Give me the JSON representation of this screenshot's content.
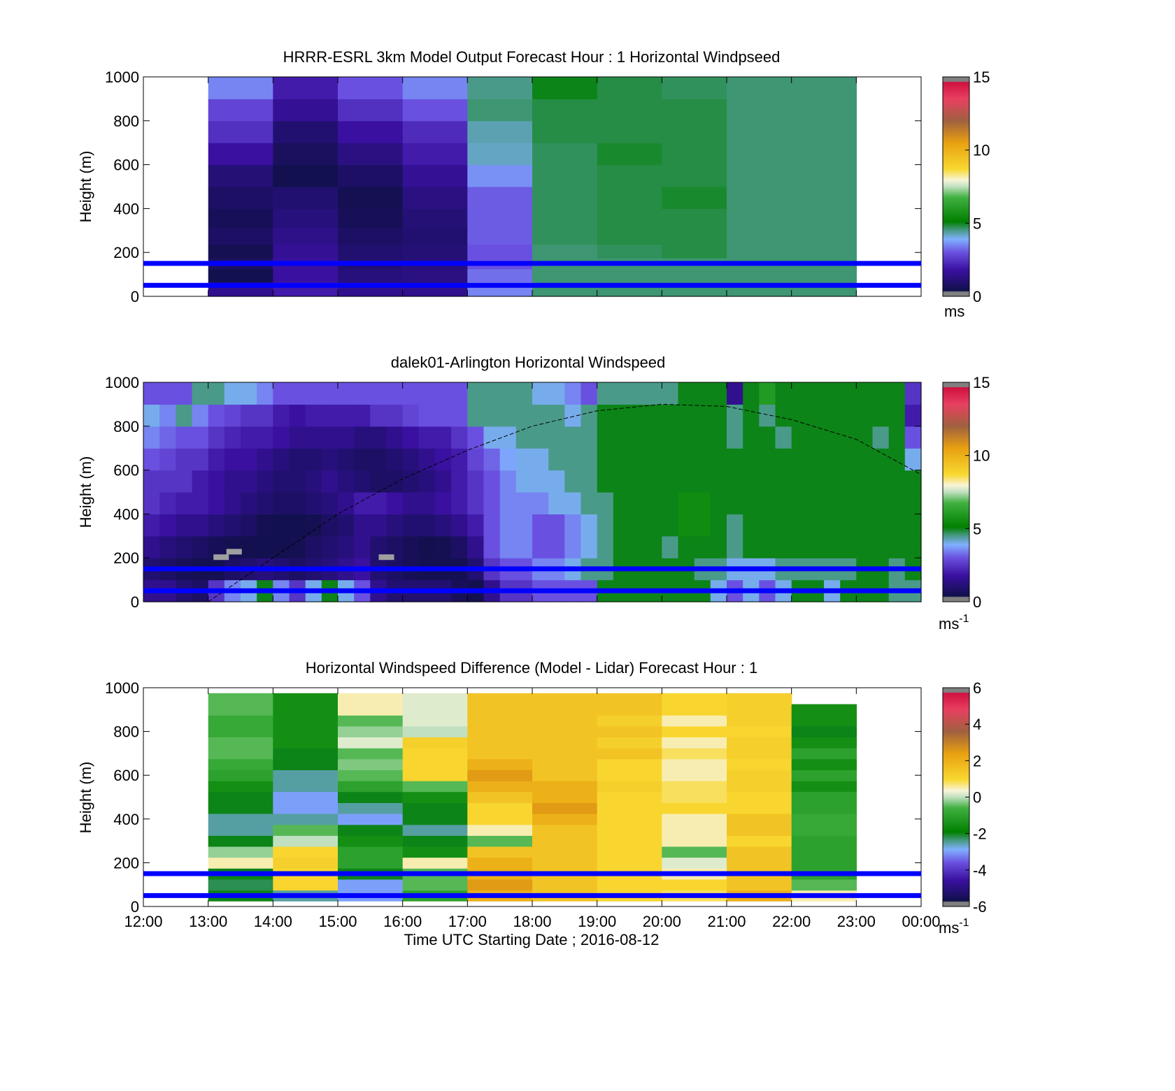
{
  "figure": {
    "xlabel": "Time UTC  Starting Date ; 2016-08-12",
    "xticks": [
      "12:00",
      "13:00",
      "14:00",
      "15:00",
      "16:00",
      "17:00",
      "18:00",
      "19:00",
      "20:00",
      "21:00",
      "22:00",
      "23:00",
      "00:00"
    ],
    "reference_lines_m": [
      50,
      150
    ],
    "reference_line_color": "#0000ff"
  },
  "chart_data": [
    {
      "type": "heatmap",
      "title": "HRRR-ESRL 3km Model Output   Forecast Hour : 1 Horizontal Windpseed",
      "ylabel": "Height (m)",
      "ylim": [
        0,
        1000
      ],
      "yticks": [
        "0",
        "200",
        "400",
        "600",
        "800",
        "1000"
      ],
      "x_hours": [
        13,
        14,
        15,
        16,
        17,
        18,
        19,
        20,
        21,
        22
      ],
      "y_levels_m": [
        30,
        100,
        150,
        200,
        275,
        350,
        450,
        550,
        650,
        750,
        850,
        950
      ],
      "speed_ms": [
        [
          1.5,
          2.0,
          1.5,
          1.5,
          3.5,
          4.6,
          4.6,
          4.6,
          4.6,
          4.6
        ],
        [
          0.0,
          1.8,
          1.2,
          1.3,
          3.3,
          4.6,
          4.6,
          4.6,
          4.6,
          4.6
        ],
        [
          0.8,
          1.8,
          1.0,
          1.2,
          3.0,
          4.6,
          4.6,
          4.6,
          4.6,
          4.6
        ],
        [
          0.5,
          1.6,
          1.0,
          1.1,
          3.0,
          4.6,
          4.7,
          4.8,
          4.6,
          4.6
        ],
        [
          0.8,
          1.4,
          0.8,
          1.0,
          3.1,
          4.7,
          4.8,
          4.8,
          4.6,
          4.6
        ],
        [
          0.6,
          1.2,
          0.6,
          1.1,
          3.1,
          4.7,
          4.8,
          4.8,
          4.6,
          4.6
        ],
        [
          0.8,
          1.0,
          0.5,
          1.3,
          3.1,
          4.7,
          4.8,
          4.9,
          4.6,
          4.6
        ],
        [
          1.1,
          0.0,
          0.8,
          1.6,
          3.6,
          4.7,
          4.8,
          4.8,
          4.6,
          4.6
        ],
        [
          1.8,
          0.7,
          1.3,
          2.0,
          4.2,
          4.7,
          4.9,
          4.8,
          4.6,
          4.6
        ],
        [
          2.4,
          1.0,
          1.8,
          2.3,
          4.3,
          4.8,
          4.8,
          4.8,
          4.6,
          4.6
        ],
        [
          2.8,
          1.6,
          2.4,
          3.0,
          4.6,
          4.8,
          4.8,
          4.8,
          4.6,
          4.6
        ],
        [
          3.5,
          2.0,
          3.0,
          3.5,
          4.5,
          5.0,
          4.8,
          4.7,
          4.6,
          4.6
        ]
      ],
      "colorbar": {
        "min": 0,
        "max": 15,
        "ticks": [
          "0",
          "5",
          "10",
          "15"
        ],
        "unit": "ms"
      }
    },
    {
      "type": "heatmap",
      "title": "dalek01-Arlington  Horizontal Windspeed",
      "ylabel": "Height (m)",
      "ylim": [
        0,
        1000
      ],
      "yticks": [
        "0",
        "200",
        "400",
        "600",
        "800",
        "1000"
      ],
      "x_hours": [
        12.125,
        12.375,
        12.625,
        12.875,
        13.125,
        13.375,
        13.625,
        13.875,
        14.125,
        14.375,
        14.625,
        14.875,
        15.125,
        15.375,
        15.625,
        15.875,
        16.125,
        16.375,
        16.625,
        16.875,
        17.125,
        17.375,
        17.625,
        17.875,
        18.125,
        18.375,
        18.625,
        18.875,
        19.125,
        19.375,
        19.625,
        19.875,
        20.125,
        20.375,
        20.625,
        20.875,
        21.125,
        21.375,
        21.625,
        21.875,
        22.125,
        22.375,
        22.625,
        22.875,
        23.125,
        23.375,
        23.625,
        23.875
      ],
      "y_levels_m": [
        50,
        150,
        250,
        350,
        450,
        550,
        650,
        750,
        850,
        950
      ],
      "speed_ms": [
        [
          1.5,
          1.5,
          1.0,
          0.8,
          2.5,
          3.5,
          4.0,
          5.0,
          3.5,
          2.5,
          4.0,
          5.0,
          4.0,
          3.0,
          1.5,
          1.0,
          1.0,
          1.0,
          1.0,
          0.6,
          0.2,
          1.5,
          2.5,
          2.5,
          3.0,
          3.0,
          3.0,
          3.0,
          5.0,
          5.0,
          5.0,
          5.0,
          5.0,
          5.0,
          5.0,
          4.0,
          3.0,
          4.0,
          3.0,
          4.0,
          5.0,
          5.0,
          4.0,
          5.0,
          5.0,
          5.0,
          4.5,
          4.5
        ],
        [
          1.0,
          0.8,
          0.6,
          0.5,
          0.5,
          0.8,
          1.0,
          1.2,
          1.0,
          0.8,
          1.0,
          1.2,
          1.5,
          1.8,
          1.0,
          0.8,
          0.6,
          0.5,
          0.5,
          0.5,
          1.0,
          2.5,
          3.0,
          3.0,
          3.5,
          3.5,
          4.0,
          4.5,
          4.5,
          5.0,
          5.0,
          5.0,
          5.0,
          5.0,
          4.5,
          4.5,
          4.0,
          4.0,
          4.0,
          4.5,
          4.5,
          4.5,
          4.5,
          4.5,
          5.0,
          5.0,
          4.5,
          5.0
        ],
        [
          1.5,
          1.2,
          1.0,
          0.8,
          0.6,
          0.5,
          0.3,
          0.2,
          0.3,
          0.5,
          0.8,
          1.0,
          1.2,
          1.5,
          1.0,
          0.8,
          0.6,
          0.4,
          0.5,
          0.8,
          1.5,
          3.0,
          3.5,
          3.5,
          3.0,
          3.0,
          3.5,
          4.0,
          4.5,
          5.0,
          5.0,
          5.0,
          4.5,
          5.0,
          5.0,
          5.0,
          4.5,
          5.0,
          5.0,
          5.0,
          5.0,
          5.0,
          5.0,
          5.0,
          5.0,
          5.0,
          5.0,
          5.0
        ],
        [
          2.0,
          1.8,
          1.5,
          1.5,
          1.2,
          1.0,
          0.8,
          0.5,
          0.3,
          0.3,
          0.5,
          0.8,
          1.0,
          1.5,
          1.5,
          1.2,
          1.0,
          1.0,
          1.2,
          1.5,
          2.0,
          3.0,
          3.5,
          3.5,
          3.0,
          3.0,
          3.5,
          4.0,
          4.5,
          5.0,
          5.0,
          5.0,
          5.0,
          5.5,
          5.5,
          5.0,
          4.5,
          5.0,
          5.0,
          5.0,
          5.0,
          5.0,
          5.0,
          5.0,
          5.0,
          5.0,
          5.0,
          5.0
        ],
        [
          2.5,
          2.2,
          2.0,
          2.0,
          1.8,
          1.5,
          1.2,
          1.0,
          0.8,
          0.8,
          1.0,
          1.2,
          1.5,
          2.0,
          2.0,
          1.8,
          1.5,
          1.5,
          1.8,
          2.0,
          2.5,
          3.0,
          3.5,
          3.5,
          3.5,
          4.0,
          4.0,
          4.5,
          4.5,
          5.0,
          5.0,
          5.0,
          5.0,
          5.5,
          5.5,
          5.0,
          5.0,
          5.0,
          5.0,
          5.0,
          5.0,
          5.0,
          5.0,
          5.0,
          5.0,
          5.0,
          5.0,
          5.0
        ],
        [
          2.5,
          2.5,
          2.5,
          2.0,
          1.8,
          1.5,
          1.5,
          1.2,
          1.0,
          1.0,
          1.2,
          1.5,
          1.2,
          1.0,
          0.8,
          0.8,
          1.0,
          1.2,
          1.5,
          2.0,
          2.5,
          3.0,
          3.5,
          4.0,
          4.0,
          4.0,
          4.5,
          4.5,
          5.0,
          5.0,
          5.0,
          5.0,
          5.0,
          5.0,
          5.0,
          5.0,
          5.0,
          5.0,
          5.0,
          5.0,
          5.0,
          5.0,
          5.0,
          5.0,
          5.0,
          5.0,
          5.0,
          5.0
        ],
        [
          3.0,
          2.8,
          2.5,
          2.5,
          2.0,
          1.8,
          1.8,
          1.5,
          1.2,
          1.0,
          1.0,
          1.2,
          1.0,
          0.8,
          0.8,
          1.0,
          1.2,
          1.5,
          1.8,
          2.0,
          2.8,
          3.2,
          3.8,
          4.0,
          4.0,
          4.5,
          4.5,
          4.5,
          5.0,
          5.0,
          5.0,
          5.0,
          5.0,
          5.0,
          5.0,
          5.0,
          5.0,
          5.0,
          5.0,
          5.0,
          5.0,
          5.0,
          5.0,
          5.0,
          5.0,
          5.0,
          5.0,
          4.0
        ],
        [
          3.5,
          3.2,
          3.0,
          3.0,
          2.5,
          2.2,
          2.0,
          2.0,
          1.8,
          1.5,
          1.5,
          1.5,
          1.5,
          1.2,
          1.2,
          1.5,
          1.8,
          2.0,
          2.0,
          2.5,
          3.0,
          4.0,
          4.0,
          4.5,
          4.5,
          4.5,
          4.5,
          4.5,
          5.0,
          5.0,
          5.0,
          5.0,
          5.0,
          5.0,
          5.0,
          5.0,
          4.5,
          5.0,
          5.0,
          4.5,
          5.0,
          5.0,
          5.0,
          5.0,
          5.0,
          4.5,
          5.0,
          3.0
        ],
        [
          4.0,
          3.5,
          4.5,
          3.5,
          3.0,
          2.8,
          2.5,
          2.5,
          2.0,
          1.8,
          2.0,
          2.0,
          2.0,
          2.0,
          2.5,
          2.5,
          2.8,
          3.0,
          3.0,
          3.0,
          4.5,
          4.5,
          4.5,
          4.5,
          4.5,
          4.5,
          4.0,
          4.5,
          5.0,
          5.0,
          5.0,
          5.0,
          5.0,
          5.0,
          5.0,
          5.0,
          4.5,
          5.0,
          4.5,
          5.0,
          5.0,
          5.0,
          5.0,
          5.0,
          5.0,
          5.0,
          5.0,
          2.0
        ],
        [
          3.0,
          3.0,
          3.0,
          4.5,
          4.5,
          4.0,
          4.0,
          3.5,
          3.0,
          3.0,
          3.0,
          3.0,
          3.0,
          3.0,
          3.0,
          3.0,
          3.0,
          3.0,
          3.0,
          3.0,
          4.5,
          4.5,
          4.5,
          4.5,
          4.0,
          4.0,
          3.5,
          3.0,
          4.5,
          4.5,
          4.5,
          4.5,
          4.5,
          5.0,
          5.0,
          5.0,
          1.5,
          5.0,
          6.0,
          5.0,
          5.0,
          5.0,
          5.0,
          5.0,
          5.0,
          5.0,
          5.0,
          2.5
        ]
      ],
      "gray_marks": [
        {
          "x_hour": 13.2,
          "y_m": 200
        },
        {
          "x_hour": 13.4,
          "y_m": 225
        },
        {
          "x_hour": 15.75,
          "y_m": 200
        }
      ],
      "boundary_layer_curve": {
        "x_hours": [
          13.0,
          14.0,
          15.0,
          16.0,
          17.0,
          18.0,
          19.0,
          20.0,
          21.0,
          22.0,
          23.0,
          24.0
        ],
        "height_m": [
          0,
          200,
          400,
          560,
          690,
          800,
          870,
          900,
          890,
          830,
          740,
          580
        ]
      },
      "colorbar": {
        "min": 0,
        "max": 15,
        "ticks": [
          "0",
          "5",
          "10",
          "15"
        ],
        "unit": "ms",
        "unit_exp": "-1"
      }
    },
    {
      "type": "heatmap",
      "title": "Horizontal Windspeed Difference (Model - Lidar) Forecast Hour : 1",
      "ylabel": "Height (m)",
      "ylim": [
        0,
        1000
      ],
      "yticks": [
        "0",
        "200",
        "400",
        "600",
        "800",
        "1000"
      ],
      "x_hours": [
        13,
        14,
        15,
        16,
        17,
        18,
        19,
        20,
        21,
        22
      ],
      "y_levels_m": [
        50,
        100,
        150,
        200,
        250,
        300,
        350,
        400,
        450,
        500,
        550,
        600,
        650,
        700,
        750,
        800,
        850,
        900,
        950
      ],
      "diff_ms": [
        [
          -2.0,
          -2.5,
          -3.0,
          -1.0,
          2.0,
          1.5,
          1.0,
          0.8,
          2.0,
          0.5
        ],
        [
          -2.2,
          1.0,
          -3.0,
          -0.5,
          2.5,
          1.5,
          1.0,
          1.0,
          1.5,
          -0.5
        ],
        [
          -2.0,
          1.0,
          -2.0,
          -0.5,
          2.0,
          1.5,
          1.0,
          0.5,
          1.5,
          -1.0
        ],
        [
          0.5,
          1.2,
          -1.0,
          0.5,
          2.0,
          1.5,
          1.0,
          0.2,
          1.5,
          -1.0
        ],
        [
          -0.2,
          1.0,
          -1.0,
          -1.5,
          1.5,
          1.5,
          1.0,
          -0.5,
          1.5,
          -1.0
        ],
        [
          -2.0,
          0.0,
          -1.5,
          -2.0,
          -0.5,
          1.5,
          1.0,
          0.5,
          1.0,
          -1.0
        ],
        [
          -2.5,
          -0.5,
          -2.0,
          -2.5,
          0.5,
          1.5,
          1.0,
          0.5,
          1.5,
          -0.8
        ],
        [
          -2.5,
          -2.5,
          -3.0,
          -2.0,
          1.0,
          2.0,
          1.0,
          0.5,
          1.5,
          -0.8
        ],
        [
          -2.0,
          -3.0,
          -2.5,
          -2.0,
          1.0,
          2.5,
          1.0,
          1.0,
          1.0,
          -1.0
        ],
        [
          -2.0,
          -3.0,
          -2.0,
          -1.5,
          1.5,
          2.0,
          1.0,
          0.8,
          1.0,
          -1.0
        ],
        [
          -1.5,
          -2.5,
          -1.0,
          -0.5,
          2.0,
          2.0,
          1.2,
          0.8,
          1.2,
          -1.5
        ],
        [
          -1.0,
          -2.5,
          -0.5,
          1.0,
          2.5,
          1.5,
          1.0,
          0.5,
          1.2,
          -1.0
        ],
        [
          -0.8,
          -2.0,
          -0.3,
          1.0,
          2.0,
          1.5,
          1.0,
          0.5,
          1.0,
          -1.5
        ],
        [
          -0.5,
          -2.0,
          -0.5,
          1.0,
          1.5,
          1.5,
          1.5,
          0.8,
          1.2,
          -1.0
        ],
        [
          -0.5,
          -1.5,
          0.2,
          1.2,
          1.5,
          1.5,
          1.2,
          0.5,
          1.2,
          -1.5
        ],
        [
          -0.8,
          -1.5,
          -0.2,
          0.0,
          1.5,
          1.5,
          1.5,
          1.0,
          1.0,
          -2.0
        ],
        [
          -0.8,
          -1.5,
          -0.5,
          0.2,
          1.5,
          1.5,
          1.2,
          0.5,
          1.2,
          -1.5
        ],
        [
          -0.5,
          -1.5,
          0.5,
          0.2,
          1.5,
          1.5,
          1.5,
          1.0,
          1.2,
          -1.5
        ],
        [
          -0.5,
          -1.5,
          0.5,
          0.2,
          1.5,
          1.5,
          1.5,
          1.0,
          1.2,
          null
        ]
      ],
      "colorbar": {
        "min": -6,
        "max": 6,
        "ticks": [
          "-6",
          "-4",
          "-2",
          "0",
          "2",
          "4",
          "6"
        ],
        "unit": "ms",
        "unit_exp": "-1"
      }
    }
  ]
}
